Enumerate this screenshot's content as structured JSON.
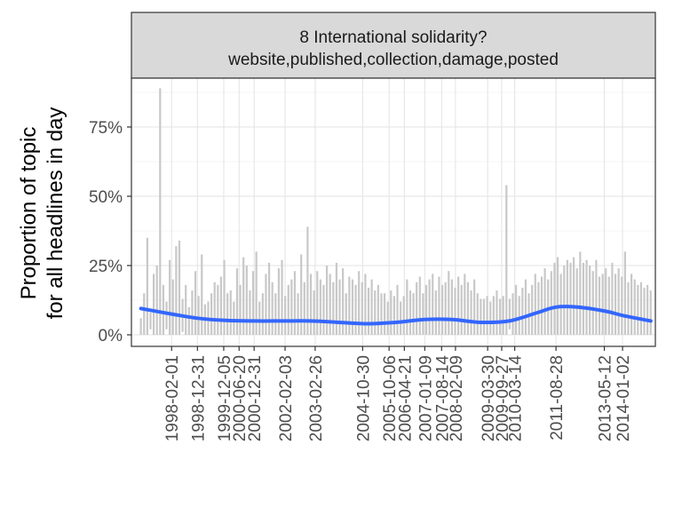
{
  "chart_data": {
    "type": "area",
    "facet": {
      "title": "8 International solidarity?",
      "subtitle": "website,published,collection,damage,posted"
    },
    "xlabel": "",
    "ylabel": [
      "Proportion of topic",
      "for all headlines in day"
    ],
    "x_range": [
      "1996-09-01",
      "2015-03-01"
    ],
    "ylim": [
      0,
      0.93
    ],
    "y_ticks": [
      {
        "value": 0,
        "label": "0%"
      },
      {
        "value": 0.25,
        "label": "25%"
      },
      {
        "value": 0.5,
        "label": "50%"
      },
      {
        "value": 0.75,
        "label": "75%"
      }
    ],
    "x_ticks": [
      "1998-02-01",
      "1998-12-31",
      "1999-12-05",
      "2000-06-20",
      "2000-12-31",
      "2002-02-03",
      "2003-02-26",
      "2004-10-30",
      "2005-10-06",
      "2006-04-21",
      "2007-01-09",
      "2007-08-14",
      "2008-02-09",
      "2009-03-30",
      "2009-09-27",
      "2010-03-14",
      "2011-08-28",
      "2013-05-12",
      "2014-01-02"
    ],
    "grid": true,
    "series": [
      {
        "kind": "daily-lines",
        "color": "#c8c8c8",
        "date_range": [
          "1997-01-01",
          "2014-12-31"
        ],
        "values": [
          0.06,
          0.15,
          0.35,
          0.08,
          0.22,
          0.25,
          0.89,
          0.18,
          0.12,
          0.27,
          0.2,
          0.32,
          0.34,
          0.13,
          0.18,
          0.1,
          0.16,
          0.23,
          0.14,
          0.29,
          0.11,
          0.12,
          0.15,
          0.19,
          0.18,
          0.21,
          0.27,
          0.15,
          0.16,
          0.12,
          0.24,
          0.18,
          0.28,
          0.25,
          0.16,
          0.23,
          0.3,
          0.12,
          0.15,
          0.22,
          0.26,
          0.19,
          0.15,
          0.24,
          0.27,
          0.14,
          0.18,
          0.2,
          0.23,
          0.15,
          0.29,
          0.19,
          0.39,
          0.22,
          0.16,
          0.23,
          0.2,
          0.18,
          0.25,
          0.22,
          0.19,
          0.26,
          0.2,
          0.24,
          0.15,
          0.21,
          0.2,
          0.18,
          0.23,
          0.19,
          0.22,
          0.17,
          0.2,
          0.16,
          0.18,
          0.15,
          0.15,
          0.12,
          0.16,
          0.14,
          0.18,
          0.12,
          0.14,
          0.2,
          0.16,
          0.15,
          0.19,
          0.21,
          0.15,
          0.18,
          0.2,
          0.22,
          0.16,
          0.21,
          0.18,
          0.19,
          0.23,
          0.2,
          0.17,
          0.21,
          0.18,
          0.22,
          0.19,
          0.16,
          0.2,
          0.15,
          0.13,
          0.13,
          0.14,
          0.12,
          0.14,
          0.16,
          0.13,
          0.14,
          0.54,
          0.13,
          0.15,
          0.18,
          0.14,
          0.17,
          0.2,
          0.15,
          0.18,
          0.22,
          0.19,
          0.21,
          0.24,
          0.2,
          0.23,
          0.26,
          0.28,
          0.22,
          0.25,
          0.27,
          0.26,
          0.28,
          0.24,
          0.3,
          0.26,
          0.27,
          0.25,
          0.23,
          0.27,
          0.21,
          0.22,
          0.24,
          0.21,
          0.26,
          0.22,
          0.24,
          0.21,
          0.3,
          0.19,
          0.22,
          0.2,
          0.18,
          0.19,
          0.17,
          0.18,
          0.16
        ],
        "lows": [
          0,
          0,
          0,
          0.02,
          0,
          0,
          0,
          0,
          0.02,
          0,
          0,
          0,
          0,
          0.01,
          0,
          0,
          0,
          0,
          0,
          0,
          0,
          0,
          0,
          0,
          0,
          0,
          0,
          0,
          0,
          0,
          0,
          0,
          0,
          0,
          0,
          0,
          0,
          0,
          0,
          0,
          0,
          0,
          0,
          0,
          0,
          0,
          0,
          0,
          0,
          0,
          0,
          0,
          0,
          0,
          0,
          0,
          0,
          0,
          0,
          0,
          0,
          0,
          0,
          0,
          0,
          0,
          0,
          0,
          0,
          0,
          0,
          0,
          0,
          0,
          0,
          0,
          0,
          0,
          0,
          0,
          0,
          0,
          0,
          0,
          0,
          0,
          0,
          0,
          0,
          0,
          0,
          0,
          0,
          0,
          0,
          0,
          0,
          0,
          0,
          0,
          0,
          0,
          0,
          0,
          0,
          0,
          0,
          0,
          0,
          0,
          0,
          0,
          0,
          0,
          0,
          0.02,
          0,
          0,
          0,
          0,
          0,
          0,
          0,
          0,
          0,
          0,
          0,
          0,
          0,
          0,
          0,
          0,
          0,
          0,
          0,
          0,
          0,
          0,
          0,
          0,
          0,
          0,
          0,
          0,
          0,
          0,
          0,
          0,
          0,
          0,
          0,
          0,
          0,
          0,
          0,
          0,
          0,
          0,
          0,
          0,
          0,
          0
        ]
      },
      {
        "kind": "smooth",
        "color": "#3366ff",
        "x": [
          "1997-01-01",
          "1998-02-01",
          "1999-01-01",
          "2000-01-01",
          "2001-01-01",
          "2002-01-01",
          "2003-01-01",
          "2004-01-01",
          "2005-01-01",
          "2006-01-01",
          "2007-01-01",
          "2008-01-01",
          "2009-01-01",
          "2010-01-01",
          "2011-01-01",
          "2011-08-28",
          "2012-06-01",
          "2013-06-01",
          "2014-01-01",
          "2014-12-31"
        ],
        "y": [
          0.095,
          0.075,
          0.06,
          0.052,
          0.05,
          0.05,
          0.05,
          0.045,
          0.04,
          0.045,
          0.055,
          0.055,
          0.045,
          0.05,
          0.08,
          0.1,
          0.1,
          0.085,
          0.07,
          0.05
        ]
      }
    ]
  }
}
